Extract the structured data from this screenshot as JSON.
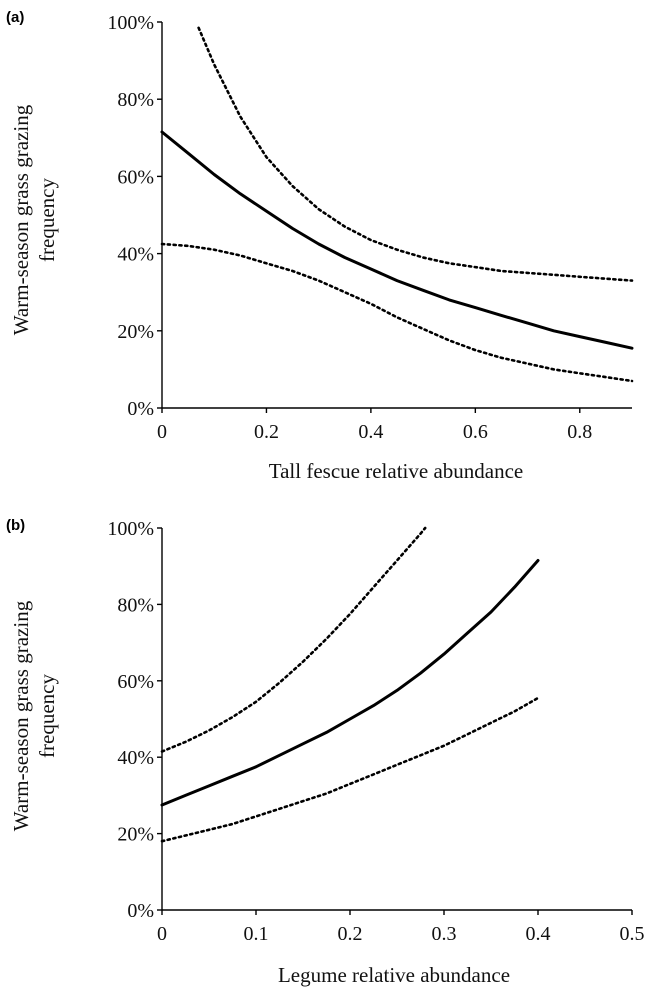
{
  "chart_data": [
    {
      "type": "line",
      "panel_label": "(a)",
      "xlabel": "Tall fescue relative abundance",
      "ylabel_lines": [
        "Warm-season grass grazing",
        "frequency"
      ],
      "xlim": [
        0,
        0.9
      ],
      "ylim": [
        0,
        1
      ],
      "x_ticks": [
        0,
        0.2,
        0.4,
        0.6,
        0.8
      ],
      "x_tick_labels": [
        "0",
        "0.2",
        "0.4",
        "0.6",
        "0.8"
      ],
      "y_ticks": [
        0,
        0.2,
        0.4,
        0.6,
        0.8,
        1.0
      ],
      "y_tick_labels": [
        "0%",
        "20%",
        "40%",
        "60%",
        "80%",
        "100%"
      ],
      "grid": false,
      "series": [
        {
          "style": "solid",
          "x": [
            0,
            0.05,
            0.1,
            0.15,
            0.2,
            0.25,
            0.3,
            0.35,
            0.4,
            0.45,
            0.5,
            0.55,
            0.6,
            0.65,
            0.7,
            0.75,
            0.8,
            0.85,
            0.9
          ],
          "y": [
            0.715,
            0.66,
            0.605,
            0.555,
            0.51,
            0.465,
            0.425,
            0.39,
            0.36,
            0.33,
            0.305,
            0.28,
            0.26,
            0.24,
            0.22,
            0.2,
            0.185,
            0.17,
            0.155
          ]
        },
        {
          "style": "dotted",
          "x": [
            0.07,
            0.1,
            0.15,
            0.2,
            0.25,
            0.3,
            0.35,
            0.4,
            0.45,
            0.5,
            0.55,
            0.6,
            0.65,
            0.7,
            0.75,
            0.8,
            0.85,
            0.9
          ],
          "y": [
            0.985,
            0.89,
            0.755,
            0.65,
            0.575,
            0.515,
            0.47,
            0.435,
            0.41,
            0.39,
            0.375,
            0.365,
            0.355,
            0.35,
            0.345,
            0.34,
            0.335,
            0.33
          ]
        },
        {
          "style": "dotted",
          "x": [
            0,
            0.05,
            0.1,
            0.15,
            0.2,
            0.25,
            0.3,
            0.35,
            0.4,
            0.45,
            0.5,
            0.55,
            0.6,
            0.65,
            0.7,
            0.75,
            0.8,
            0.85,
            0.9
          ],
          "y": [
            0.425,
            0.42,
            0.41,
            0.395,
            0.375,
            0.355,
            0.33,
            0.3,
            0.27,
            0.235,
            0.205,
            0.175,
            0.15,
            0.13,
            0.115,
            0.1,
            0.09,
            0.08,
            0.07
          ]
        }
      ]
    },
    {
      "type": "line",
      "panel_label": "(b)",
      "xlabel": "Legume relative abundance",
      "ylabel_lines": [
        "Warm-season grass grazing",
        "frequency"
      ],
      "xlim": [
        0,
        0.5
      ],
      "ylim": [
        0,
        1
      ],
      "x_ticks": [
        0,
        0.1,
        0.2,
        0.3,
        0.4,
        0.5
      ],
      "x_tick_labels": [
        "0",
        "0.1",
        "0.2",
        "0.3",
        "0.4",
        "0.5"
      ],
      "y_ticks": [
        0,
        0.2,
        0.4,
        0.6,
        0.8,
        1.0
      ],
      "y_tick_labels": [
        "0%",
        "20%",
        "40%",
        "60%",
        "80%",
        "100%"
      ],
      "grid": false,
      "series": [
        {
          "style": "solid",
          "x": [
            0,
            0.025,
            0.05,
            0.075,
            0.1,
            0.125,
            0.15,
            0.175,
            0.2,
            0.225,
            0.25,
            0.275,
            0.3,
            0.325,
            0.35,
            0.375,
            0.4
          ],
          "y": [
            0.275,
            0.3,
            0.325,
            0.35,
            0.375,
            0.405,
            0.435,
            0.465,
            0.5,
            0.535,
            0.575,
            0.62,
            0.67,
            0.725,
            0.78,
            0.845,
            0.915
          ]
        },
        {
          "style": "dotted",
          "x": [
            0,
            0.025,
            0.05,
            0.075,
            0.1,
            0.125,
            0.15,
            0.175,
            0.2,
            0.225,
            0.25,
            0.275,
            0.28
          ],
          "y": [
            0.415,
            0.44,
            0.47,
            0.505,
            0.545,
            0.595,
            0.65,
            0.71,
            0.775,
            0.845,
            0.915,
            0.985,
            1.0
          ]
        },
        {
          "style": "dotted",
          "x": [
            0,
            0.025,
            0.05,
            0.075,
            0.1,
            0.125,
            0.15,
            0.175,
            0.2,
            0.225,
            0.25,
            0.275,
            0.3,
            0.325,
            0.35,
            0.375,
            0.4
          ],
          "y": [
            0.18,
            0.195,
            0.21,
            0.225,
            0.245,
            0.265,
            0.285,
            0.305,
            0.33,
            0.355,
            0.38,
            0.405,
            0.43,
            0.46,
            0.49,
            0.52,
            0.555
          ]
        }
      ]
    }
  ]
}
